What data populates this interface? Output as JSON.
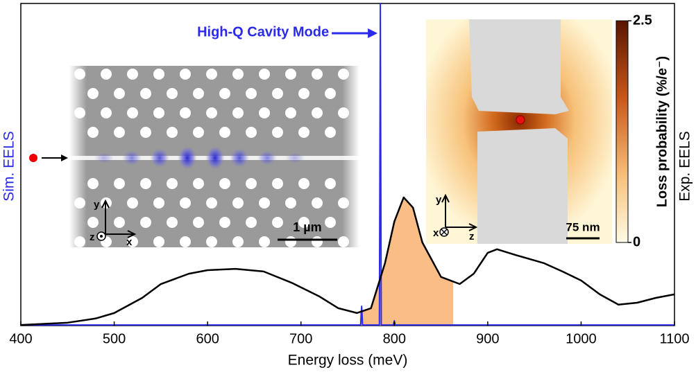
{
  "chart_data": {
    "type": "line",
    "xlabel": "Energy loss (meV)",
    "ylabel": "Sim. EELS",
    "y2label": "Exp. EELS",
    "xlim": [
      400,
      1100
    ],
    "xticks": [
      400,
      500,
      600,
      700,
      800,
      900,
      1000,
      1100
    ],
    "ylim": [
      0,
      1
    ],
    "y2lim": [
      0,
      1
    ],
    "series": [
      {
        "color": "#2a2ae8",
        "axis": "y",
        "x": [
          400,
          764,
          765,
          766,
          767,
          784,
          785,
          786,
          799,
          800,
          801,
          1100
        ],
        "values": [
          0.002,
          0.002,
          0.06,
          0.002,
          0.002,
          0.002,
          1.0,
          0.002,
          0.002,
          0.015,
          0.002,
          0.002
        ]
      },
      {
        "color": "#000000",
        "axis": "y2",
        "x": [
          400,
          450,
          480,
          500,
          530,
          550,
          580,
          600,
          630,
          660,
          690,
          720,
          740,
          760,
          775,
          790,
          800,
          810,
          820,
          830,
          850,
          870,
          885,
          900,
          910,
          930,
          960,
          980,
          1000,
          1020,
          1040,
          1060,
          1080,
          1100
        ],
        "values": [
          0.002,
          0.009,
          0.022,
          0.039,
          0.086,
          0.129,
          0.161,
          0.172,
          0.176,
          0.168,
          0.133,
          0.09,
          0.054,
          0.039,
          0.054,
          0.194,
          0.323,
          0.398,
          0.366,
          0.258,
          0.151,
          0.129,
          0.161,
          0.226,
          0.237,
          0.219,
          0.194,
          0.168,
          0.14,
          0.097,
          0.065,
          0.071,
          0.086,
          0.097
        ]
      }
    ],
    "highlight": {
      "range": [
        763,
        863
      ],
      "color": "#f9bd85"
    },
    "annotation": {
      "text": "High-Q Cavity Mode",
      "x": 785
    },
    "insets": [
      {
        "axes": [
          "y",
          "z",
          "x"
        ],
        "scale_bar": "1 µm"
      },
      {
        "axes": [
          "y",
          "x",
          "z"
        ],
        "scale_bar": "75 nm",
        "colorbar": {
          "label": "Loss probability (%/e⁻)",
          "lim": [
            0,
            2.5
          ],
          "ticks": [
            0,
            2.5
          ]
        }
      }
    ]
  }
}
